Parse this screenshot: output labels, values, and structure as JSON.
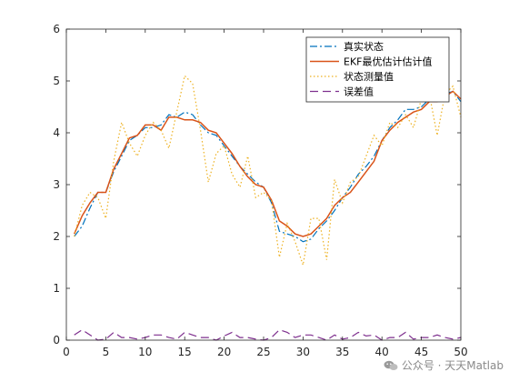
{
  "chart_data": {
    "type": "line",
    "xlim": [
      0,
      50
    ],
    "ylim": [
      0,
      6
    ],
    "xticks": [
      0,
      5,
      10,
      15,
      20,
      25,
      30,
      35,
      40,
      45,
      50
    ],
    "yticks": [
      0,
      1,
      2,
      3,
      4,
      5,
      6
    ],
    "grid": false,
    "legend_position": "top-right",
    "x": [
      1,
      2,
      3,
      4,
      5,
      6,
      7,
      8,
      9,
      10,
      11,
      12,
      13,
      14,
      15,
      16,
      17,
      18,
      19,
      20,
      21,
      22,
      23,
      24,
      25,
      26,
      27,
      28,
      29,
      30,
      31,
      32,
      33,
      34,
      35,
      36,
      37,
      38,
      39,
      40,
      41,
      42,
      43,
      44,
      45,
      46,
      47,
      48,
      49,
      50
    ],
    "series": [
      {
        "name": "真实状态",
        "color": "#0072BD",
        "style": "dashdot",
        "values": [
          2.0,
          2.2,
          2.55,
          2.85,
          2.85,
          3.25,
          3.55,
          3.85,
          3.95,
          4.1,
          4.1,
          4.15,
          4.35,
          4.3,
          4.4,
          4.35,
          4.15,
          4.0,
          3.95,
          3.75,
          3.55,
          3.35,
          3.2,
          3.05,
          2.95,
          2.65,
          2.1,
          2.05,
          2.0,
          1.9,
          1.95,
          2.15,
          2.3,
          2.5,
          2.75,
          2.95,
          3.2,
          3.35,
          3.55,
          3.85,
          4.1,
          4.25,
          4.45,
          4.45,
          4.5,
          4.65,
          4.7,
          4.75,
          4.8,
          4.6
        ]
      },
      {
        "name": "EKF最优估计估计值",
        "color": "#D95319",
        "style": "solid",
        "values": [
          2.05,
          2.4,
          2.65,
          2.85,
          2.85,
          3.3,
          3.6,
          3.9,
          3.95,
          4.15,
          4.15,
          4.05,
          4.3,
          4.3,
          4.25,
          4.25,
          4.2,
          4.05,
          4.0,
          3.8,
          3.6,
          3.35,
          3.15,
          3.0,
          2.95,
          2.7,
          2.3,
          2.2,
          2.05,
          2.0,
          2.05,
          2.2,
          2.35,
          2.6,
          2.75,
          2.85,
          3.05,
          3.25,
          3.45,
          3.85,
          4.05,
          4.2,
          4.3,
          4.4,
          4.45,
          4.6,
          4.6,
          4.7,
          4.8,
          4.65
        ]
      },
      {
        "name": "状态测量值",
        "color": "#EDB120",
        "style": "dotted",
        "values": [
          2.0,
          2.6,
          2.85,
          2.75,
          2.35,
          3.45,
          4.2,
          3.8,
          3.55,
          3.95,
          4.2,
          4.05,
          3.7,
          4.4,
          5.1,
          4.95,
          4.05,
          3.05,
          3.6,
          3.75,
          3.2,
          2.95,
          3.55,
          2.75,
          2.85,
          2.7,
          1.6,
          2.25,
          1.9,
          1.45,
          2.35,
          2.35,
          1.55,
          3.1,
          2.65,
          3.05,
          3.15,
          3.55,
          3.95,
          3.75,
          4.2,
          4.1,
          4.35,
          4.1,
          4.65,
          4.75,
          3.95,
          4.75,
          4.9,
          4.3
        ]
      },
      {
        "name": "误差值",
        "color": "#7E2F8E",
        "style": "dashed",
        "values": [
          0.1,
          0.2,
          0.1,
          0.0,
          0.02,
          0.15,
          0.05,
          0.05,
          0.02,
          0.05,
          0.1,
          0.1,
          0.05,
          0.02,
          0.15,
          0.1,
          0.05,
          0.05,
          0.0,
          0.08,
          0.15,
          0.05,
          0.05,
          0.02,
          0.0,
          0.05,
          0.2,
          0.15,
          0.05,
          0.1,
          0.1,
          0.05,
          0.0,
          0.1,
          0.02,
          0.05,
          0.15,
          0.08,
          0.1,
          0.0,
          0.05,
          0.05,
          0.15,
          0.02,
          0.05,
          0.05,
          0.1,
          0.05,
          0.02,
          0.05
        ]
      }
    ]
  },
  "watermark": {
    "text": "公众号 · 天天Matlab",
    "icon": "wechat-icon"
  }
}
